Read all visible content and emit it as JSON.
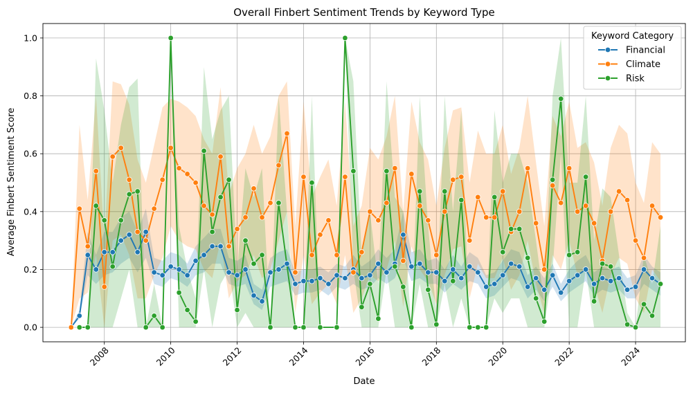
{
  "chart_data": {
    "type": "line",
    "title": "Overall Finbert Sentiment Trends by Keyword Type",
    "xlabel": "Date",
    "ylabel": "Average Finbert Sentiment Score",
    "x_range": [
      2006.15,
      2025.5
    ],
    "ylim": [
      -0.05,
      1.05
    ],
    "x_ticks": [
      2008,
      2010,
      2012,
      2014,
      2016,
      2018,
      2020,
      2022,
      2024
    ],
    "x_tick_labels": [
      "2008",
      "2010",
      "2012",
      "2014",
      "2016",
      "2018",
      "2020",
      "2022",
      "2024"
    ],
    "y_ticks": [
      0.0,
      0.2,
      0.4,
      0.6,
      0.8,
      1.0
    ],
    "y_tick_labels": [
      "0.0",
      "0.2",
      "0.4",
      "0.6",
      "0.8",
      "1.0"
    ],
    "grid": true,
    "confidence_bands": true,
    "legend": {
      "title": "Keyword Category",
      "placement": "top-right"
    },
    "series": [
      {
        "name": "Financial",
        "color": "#1f77b4",
        "x": [
          2007.0,
          2007.25,
          2007.5,
          2007.75,
          2008.0,
          2008.25,
          2008.5,
          2008.75,
          2009.0,
          2009.25,
          2009.5,
          2009.75,
          2010.0,
          2010.25,
          2010.5,
          2010.75,
          2011.0,
          2011.25,
          2011.5,
          2011.75,
          2012.0,
          2012.25,
          2012.5,
          2012.75,
          2013.0,
          2013.25,
          2013.5,
          2013.75,
          2014.0,
          2014.25,
          2014.5,
          2014.75,
          2015.0,
          2015.25,
          2015.5,
          2015.75,
          2016.0,
          2016.25,
          2016.5,
          2016.75,
          2017.0,
          2017.25,
          2017.5,
          2017.75,
          2018.0,
          2018.25,
          2018.5,
          2018.75,
          2019.0,
          2019.25,
          2019.5,
          2019.75,
          2020.0,
          2020.25,
          2020.5,
          2020.75,
          2021.0,
          2021.25,
          2021.5,
          2021.75,
          2022.0,
          2022.25,
          2022.5,
          2022.75,
          2023.0,
          2023.25,
          2023.5,
          2023.75,
          2024.0,
          2024.25,
          2024.5,
          2024.75
        ],
        "y": [
          0.0,
          0.04,
          0.25,
          0.2,
          0.26,
          0.26,
          0.3,
          0.32,
          0.26,
          0.33,
          0.19,
          0.18,
          0.21,
          0.2,
          0.18,
          0.23,
          0.25,
          0.28,
          0.28,
          0.19,
          0.18,
          0.2,
          0.11,
          0.09,
          0.19,
          0.2,
          0.22,
          0.15,
          0.16,
          0.16,
          0.17,
          0.15,
          0.18,
          0.17,
          0.2,
          0.17,
          0.18,
          0.22,
          0.19,
          0.22,
          0.32,
          0.21,
          0.22,
          0.19,
          0.19,
          0.16,
          0.2,
          0.17,
          0.21,
          0.19,
          0.14,
          0.15,
          0.18,
          0.22,
          0.21,
          0.14,
          0.17,
          0.13,
          0.18,
          0.12,
          0.16,
          0.18,
          0.2,
          0.15,
          0.17,
          0.16,
          0.17,
          0.13,
          0.14,
          0.2,
          0.17,
          0.15
        ],
        "lower": [
          0.0,
          0.03,
          0.18,
          0.15,
          0.18,
          0.19,
          0.22,
          0.24,
          0.19,
          0.24,
          0.15,
          0.14,
          0.17,
          0.16,
          0.14,
          0.18,
          0.19,
          0.22,
          0.22,
          0.15,
          0.14,
          0.15,
          0.08,
          0.06,
          0.14,
          0.15,
          0.16,
          0.11,
          0.12,
          0.12,
          0.13,
          0.11,
          0.14,
          0.13,
          0.15,
          0.13,
          0.14,
          0.17,
          0.15,
          0.17,
          0.24,
          0.16,
          0.17,
          0.15,
          0.15,
          0.12,
          0.15,
          0.13,
          0.16,
          0.15,
          0.1,
          0.11,
          0.14,
          0.17,
          0.16,
          0.1,
          0.13,
          0.09,
          0.14,
          0.09,
          0.12,
          0.14,
          0.16,
          0.11,
          0.13,
          0.12,
          0.13,
          0.1,
          0.1,
          0.15,
          0.13,
          0.11
        ],
        "upper": [
          0.0,
          0.06,
          0.33,
          0.25,
          0.33,
          0.33,
          0.38,
          0.4,
          0.33,
          0.41,
          0.24,
          0.23,
          0.26,
          0.25,
          0.22,
          0.28,
          0.31,
          0.34,
          0.34,
          0.24,
          0.23,
          0.25,
          0.15,
          0.13,
          0.24,
          0.26,
          0.27,
          0.19,
          0.2,
          0.2,
          0.21,
          0.19,
          0.22,
          0.21,
          0.25,
          0.21,
          0.23,
          0.27,
          0.24,
          0.27,
          0.4,
          0.26,
          0.27,
          0.23,
          0.24,
          0.2,
          0.25,
          0.21,
          0.26,
          0.24,
          0.18,
          0.19,
          0.23,
          0.27,
          0.26,
          0.18,
          0.21,
          0.17,
          0.22,
          0.15,
          0.2,
          0.23,
          0.25,
          0.19,
          0.21,
          0.2,
          0.21,
          0.17,
          0.18,
          0.25,
          0.21,
          0.19
        ]
      },
      {
        "name": "Climate",
        "color": "#ff7f0e",
        "x": [
          2007.0,
          2007.25,
          2007.5,
          2007.75,
          2008.0,
          2008.25,
          2008.5,
          2008.75,
          2009.0,
          2009.25,
          2009.5,
          2009.75,
          2010.0,
          2010.25,
          2010.5,
          2010.75,
          2011.0,
          2011.25,
          2011.5,
          2011.75,
          2012.0,
          2012.25,
          2012.5,
          2012.75,
          2013.0,
          2013.25,
          2013.5,
          2013.75,
          2014.0,
          2014.25,
          2014.5,
          2014.75,
          2015.0,
          2015.25,
          2015.5,
          2015.75,
          2016.0,
          2016.25,
          2016.5,
          2016.75,
          2017.0,
          2017.25,
          2017.5,
          2017.75,
          2018.0,
          2018.25,
          2018.5,
          2018.75,
          2019.0,
          2019.25,
          2019.5,
          2019.75,
          2020.0,
          2020.25,
          2020.5,
          2020.75,
          2021.0,
          2021.25,
          2021.5,
          2021.75,
          2022.0,
          2022.25,
          2022.5,
          2022.75,
          2023.0,
          2023.25,
          2023.5,
          2023.75,
          2024.0,
          2024.25,
          2024.5,
          2024.75
        ],
        "y": [
          0.0,
          0.41,
          0.28,
          0.54,
          0.14,
          0.59,
          0.62,
          0.51,
          0.33,
          0.3,
          0.41,
          0.51,
          0.62,
          0.55,
          0.53,
          0.5,
          0.42,
          0.39,
          0.59,
          0.28,
          0.34,
          0.38,
          0.48,
          0.38,
          0.43,
          0.56,
          0.67,
          0.19,
          0.52,
          0.25,
          0.32,
          0.37,
          0.25,
          0.52,
          0.19,
          0.26,
          0.4,
          0.37,
          0.43,
          0.55,
          0.23,
          0.53,
          0.42,
          0.37,
          0.25,
          0.4,
          0.51,
          0.52,
          0.3,
          0.45,
          0.38,
          0.38,
          0.47,
          0.33,
          0.4,
          0.55,
          0.36,
          0.2,
          0.49,
          0.43,
          0.55,
          0.4,
          0.42,
          0.36,
          0.23,
          0.4,
          0.47,
          0.44,
          0.3,
          0.24,
          0.42,
          0.38
        ],
        "lower": [
          0.0,
          0.1,
          0.12,
          0.25,
          0.0,
          0.3,
          0.32,
          0.25,
          0.1,
          0.1,
          0.18,
          0.24,
          0.35,
          0.3,
          0.28,
          0.27,
          0.2,
          0.17,
          0.3,
          0.1,
          0.16,
          0.18,
          0.25,
          0.17,
          0.2,
          0.3,
          0.4,
          0.05,
          0.25,
          0.08,
          0.12,
          0.15,
          0.08,
          0.25,
          0.05,
          0.1,
          0.18,
          0.16,
          0.2,
          0.3,
          0.07,
          0.28,
          0.2,
          0.16,
          0.08,
          0.18,
          0.27,
          0.28,
          0.1,
          0.22,
          0.17,
          0.17,
          0.24,
          0.13,
          0.18,
          0.3,
          0.15,
          0.05,
          0.25,
          0.2,
          0.3,
          0.18,
          0.2,
          0.15,
          0.05,
          0.18,
          0.24,
          0.22,
          0.1,
          0.05,
          0.2,
          0.16
        ],
        "upper": [
          0.0,
          0.7,
          0.44,
          0.8,
          0.3,
          0.85,
          0.84,
          0.77,
          0.58,
          0.5,
          0.63,
          0.76,
          0.79,
          0.78,
          0.76,
          0.73,
          0.65,
          0.6,
          0.83,
          0.46,
          0.55,
          0.6,
          0.7,
          0.6,
          0.66,
          0.8,
          0.85,
          0.35,
          0.78,
          0.45,
          0.52,
          0.58,
          0.42,
          0.78,
          0.35,
          0.42,
          0.62,
          0.58,
          0.66,
          0.8,
          0.4,
          0.78,
          0.64,
          0.58,
          0.42,
          0.62,
          0.75,
          0.76,
          0.5,
          0.68,
          0.6,
          0.6,
          0.7,
          0.53,
          0.62,
          0.8,
          0.57,
          0.35,
          0.73,
          0.66,
          0.78,
          0.62,
          0.64,
          0.57,
          0.42,
          0.62,
          0.7,
          0.67,
          0.5,
          0.43,
          0.64,
          0.6
        ]
      },
      {
        "name": "Risk",
        "color": "#2ca02c",
        "x": [
          2007.25,
          2007.5,
          2007.75,
          2008.0,
          2008.25,
          2008.5,
          2008.75,
          2009.0,
          2009.25,
          2009.5,
          2009.75,
          2010.0,
          2010.25,
          2010.5,
          2010.75,
          2011.0,
          2011.25,
          2011.5,
          2011.75,
          2012.0,
          2012.25,
          2012.5,
          2012.75,
          2013.0,
          2013.25,
          2013.75,
          2014.0,
          2014.25,
          2014.5,
          2015.0,
          2015.25,
          2015.5,
          2015.75,
          2016.0,
          2016.25,
          2016.5,
          2016.75,
          2017.0,
          2017.25,
          2017.5,
          2017.75,
          2018.0,
          2018.25,
          2018.5,
          2018.75,
          2019.0,
          2019.25,
          2019.5,
          2019.75,
          2020.0,
          2020.25,
          2020.5,
          2020.75,
          2021.0,
          2021.25,
          2021.5,
          2021.75,
          2022.0,
          2022.25,
          2022.5,
          2022.75,
          2023.0,
          2023.25,
          2023.75,
          2024.0,
          2024.25,
          2024.5,
          2024.75
        ],
        "y": [
          0.0,
          0.0,
          0.42,
          0.37,
          0.21,
          0.37,
          0.46,
          0.47,
          0.0,
          0.04,
          0.0,
          1.0,
          0.12,
          0.06,
          0.02,
          0.61,
          0.33,
          0.45,
          0.51,
          0.06,
          0.3,
          0.22,
          0.25,
          0.0,
          0.43,
          0.0,
          0.0,
          0.5,
          0.0,
          0.0,
          1.0,
          0.54,
          0.07,
          0.15,
          0.03,
          0.54,
          0.21,
          0.14,
          0.0,
          0.47,
          0.13,
          0.01,
          0.47,
          0.16,
          0.44,
          0.0,
          0.0,
          0.0,
          0.45,
          0.26,
          0.34,
          0.34,
          0.24,
          0.1,
          0.02,
          0.51,
          0.79,
          0.25,
          0.26,
          0.52,
          0.09,
          0.22,
          0.21,
          0.01,
          0.0,
          0.08,
          0.04,
          0.15
        ],
        "lower": [
          0.0,
          0.0,
          0.0,
          0.0,
          0.0,
          0.1,
          0.2,
          0.0,
          0.0,
          0.0,
          0.0,
          1.0,
          0.0,
          0.0,
          0.0,
          0.2,
          0.0,
          0.15,
          0.2,
          0.0,
          0.05,
          0.0,
          0.0,
          0.0,
          0.0,
          0.0,
          0.0,
          0.0,
          0.0,
          0.0,
          1.0,
          0.2,
          0.0,
          0.0,
          0.0,
          0.2,
          0.0,
          0.0,
          0.0,
          0.15,
          0.0,
          0.0,
          0.15,
          0.0,
          0.1,
          0.0,
          0.0,
          0.0,
          0.1,
          0.05,
          0.1,
          0.1,
          0.0,
          0.0,
          0.0,
          0.2,
          0.6,
          0.0,
          0.0,
          0.2,
          0.0,
          0.0,
          0.0,
          0.0,
          0.0,
          0.0,
          0.0,
          0.0
        ],
        "upper": [
          0.0,
          0.0,
          0.93,
          0.75,
          0.5,
          0.7,
          0.83,
          0.86,
          0.0,
          0.15,
          0.0,
          1.0,
          0.35,
          0.2,
          0.1,
          0.9,
          0.65,
          0.75,
          0.8,
          0.2,
          0.55,
          0.45,
          0.55,
          0.0,
          0.8,
          0.0,
          0.0,
          0.8,
          0.0,
          0.0,
          1.0,
          0.85,
          0.25,
          0.4,
          0.15,
          0.85,
          0.45,
          0.4,
          0.0,
          0.8,
          0.35,
          0.05,
          0.8,
          0.4,
          0.75,
          0.0,
          0.0,
          0.0,
          0.75,
          0.5,
          0.6,
          0.6,
          0.5,
          0.3,
          0.08,
          0.8,
          1.0,
          0.5,
          0.5,
          0.8,
          0.3,
          0.48,
          0.45,
          0.05,
          0.0,
          0.25,
          0.15,
          0.35
        ]
      }
    ]
  }
}
